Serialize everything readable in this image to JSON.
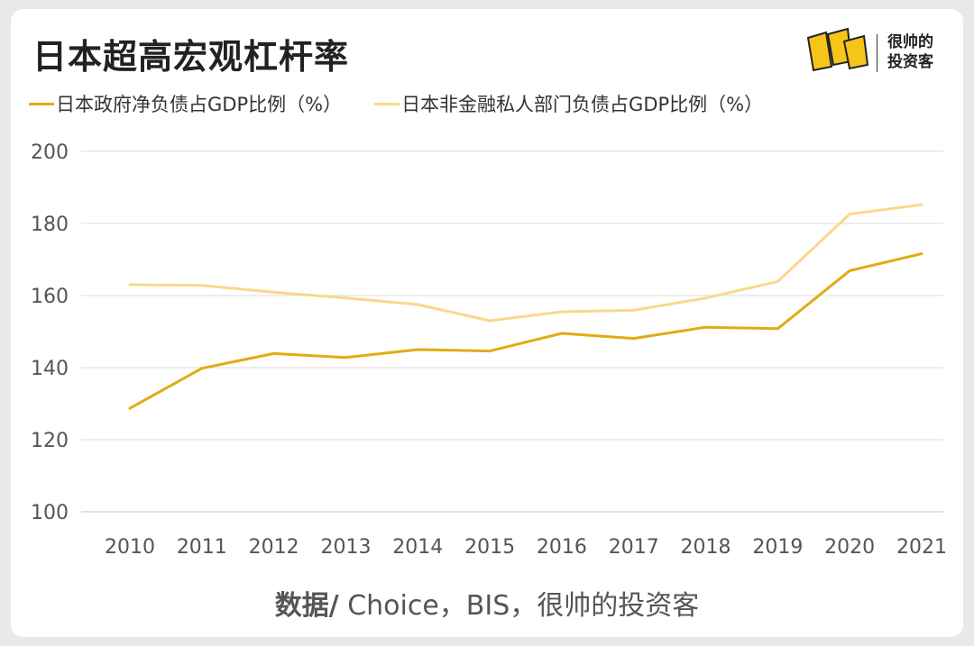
{
  "title": "日本超高宏观杠杆率",
  "brand": {
    "line1": "很帅的",
    "line2": "投资客"
  },
  "source": {
    "label": "数据/",
    "text": " Choice，BIS，很帅的投资客"
  },
  "colors": {
    "series1": "#e0ac12",
    "series2": "#f9d88b",
    "grid": "#e2e2e2"
  },
  "chart_data": {
    "type": "line",
    "title": "日本超高宏观杠杆率",
    "xlabel": "",
    "ylabel": "",
    "x": [
      "2010",
      "2011",
      "2012",
      "2013",
      "2014",
      "2015",
      "2016",
      "2017",
      "2018",
      "2019",
      "2020",
      "2021"
    ],
    "ylim": [
      100,
      200
    ],
    "yticks": [
      200,
      180,
      160,
      140,
      120,
      100
    ],
    "grid": true,
    "legend": "top-left",
    "series": [
      {
        "name": "日本政府净负债占GDP比例（%）",
        "color": "#e0ac12",
        "values": [
          128.7,
          139.8,
          143.9,
          142.8,
          145.0,
          144.6,
          149.5,
          148.1,
          151.2,
          150.8,
          166.9,
          171.6
        ]
      },
      {
        "name": "日本非金融私人部门负债占GDP比例（%）",
        "color": "#f9d88b",
        "values": [
          163.0,
          162.8,
          160.9,
          159.3,
          157.5,
          153.0,
          155.5,
          155.9,
          159.3,
          163.9,
          182.6,
          185.2
        ]
      }
    ]
  }
}
